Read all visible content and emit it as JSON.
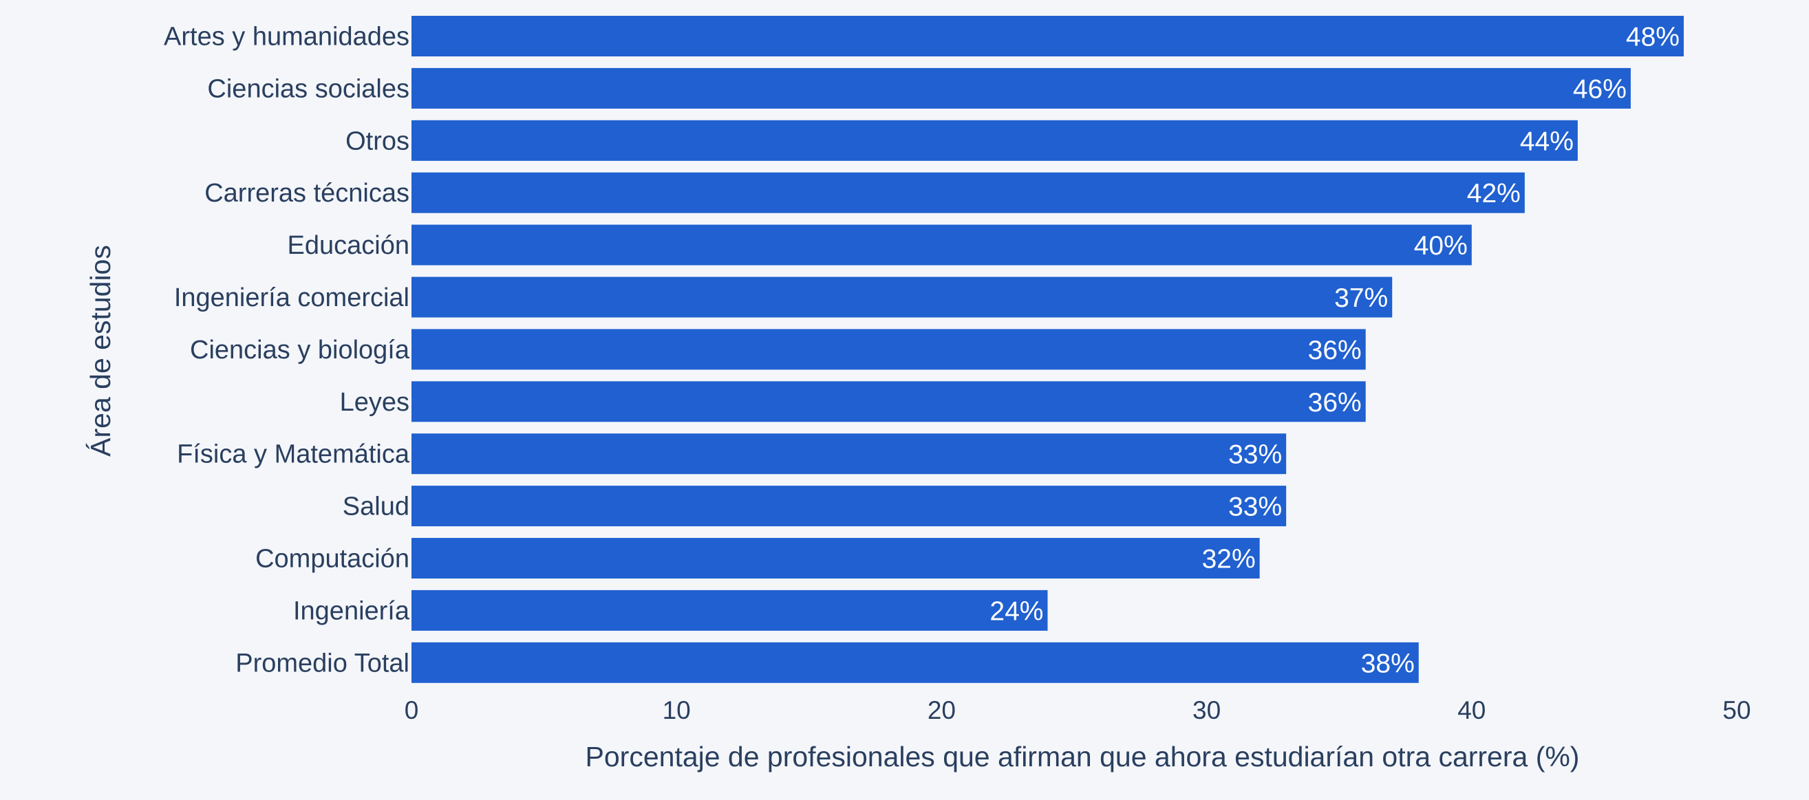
{
  "chart_data": {
    "type": "bar",
    "orientation": "horizontal",
    "categories": [
      "Artes y humanidades",
      "Ciencias sociales",
      "Otros",
      "Carreras técnicas",
      "Educación",
      "Ingeniería comercial",
      "Ciencias y biología",
      "Leyes",
      "Física y Matemática",
      "Salud",
      "Computación",
      "Ingeniería",
      "Promedio Total"
    ],
    "values": [
      48,
      46,
      44,
      42,
      40,
      37,
      36,
      36,
      33,
      33,
      32,
      24,
      38
    ],
    "value_labels": [
      "48%",
      "46%",
      "44%",
      "42%",
      "40%",
      "37%",
      "36%",
      "36%",
      "33%",
      "33%",
      "32%",
      "24%",
      "38%"
    ],
    "xlabel": "Porcentaje de profesionales que afirman que ahora estudiarían otra carrera (%)",
    "ylabel": "Área de estudios",
    "xlim": [
      0,
      50
    ],
    "xticks": [
      0,
      10,
      20,
      30,
      40,
      50
    ],
    "xtick_labels": [
      "0",
      "10",
      "20",
      "30",
      "40",
      "50"
    ],
    "grid": false,
    "colors": {
      "bar": "#2060d0",
      "background": "#f4f6fa",
      "text": "#2a3f5f",
      "bar_label": "#ffffff"
    }
  }
}
